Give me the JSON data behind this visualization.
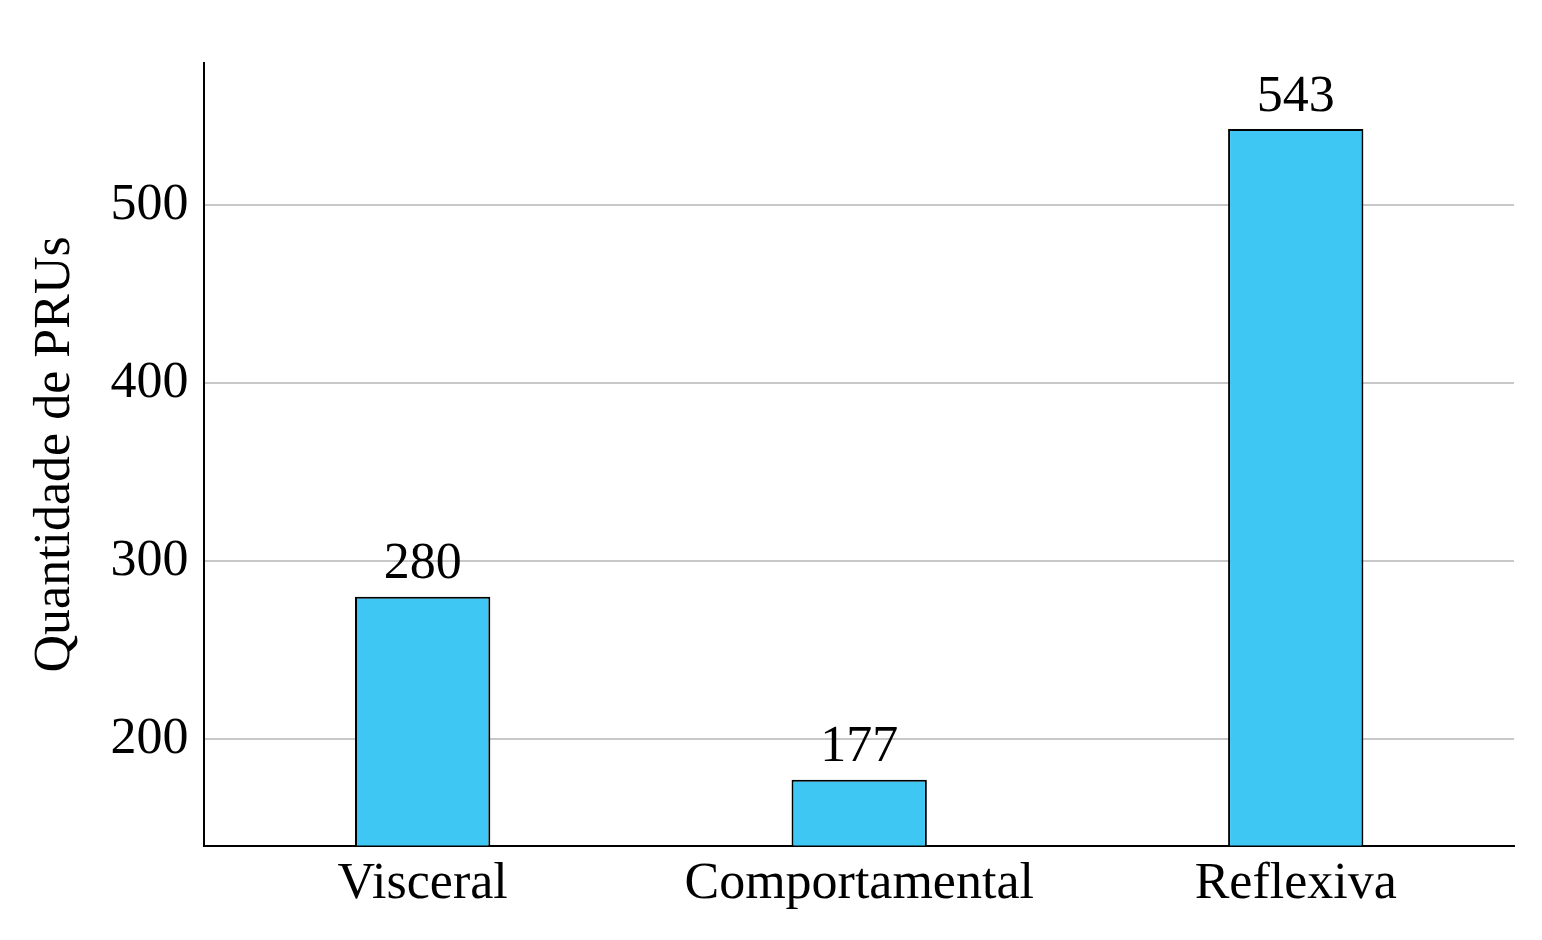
{
  "chart_data": {
    "type": "bar",
    "ylabel": "Quantidade de PRUs",
    "categories": [
      "Visceral",
      "Comportamental",
      "Reflexiva"
    ],
    "values": [
      280,
      177,
      543
    ],
    "color": "#3fc7f4",
    "ylim": [
      140,
      580
    ],
    "yticks": [
      200,
      300,
      400,
      500
    ],
    "grid": "y",
    "data_labels": true,
    "legend": false
  }
}
